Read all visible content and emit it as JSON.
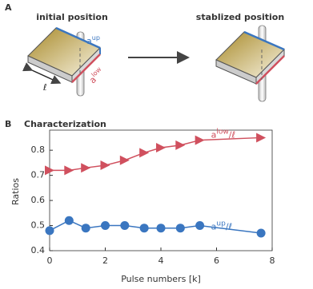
{
  "panel_a": {
    "letter": "A",
    "initial_title": "initial position",
    "stabilized_title": "stablized position",
    "labels": {
      "up": {
        "base": "a",
        "sup": "up"
      },
      "low": {
        "base": "a",
        "sup": "low"
      },
      "length": "ℓ"
    }
  },
  "chart_data": {
    "type": "line",
    "letter": "B",
    "title": "Characterization",
    "x_label": "Pulse numbers [k]",
    "y_label": "Ratios",
    "xlim": [
      0,
      8
    ],
    "xticks": [
      0,
      2,
      4,
      6,
      8
    ],
    "ylim": [
      0.4,
      0.88
    ],
    "yticks": [
      0.4,
      0.5,
      0.6,
      0.7,
      0.8
    ],
    "x": [
      0,
      0.7,
      1.3,
      2,
      2.7,
      3.4,
      4,
      4.7,
      5.4,
      7.6
    ],
    "series": [
      {
        "name": {
          "base": "a",
          "sup": "low",
          "rest": "/ℓ"
        },
        "color": "#d0505e",
        "marker": "triangle",
        "values": [
          0.72,
          0.72,
          0.73,
          0.74,
          0.76,
          0.79,
          0.81,
          0.82,
          0.84,
          0.85
        ]
      },
      {
        "name": {
          "base": "a",
          "sup": "up",
          "rest": "/ℓ"
        },
        "color": "#3a76c0",
        "marker": "circle",
        "values": [
          0.48,
          0.52,
          0.49,
          0.5,
          0.5,
          0.49,
          0.49,
          0.49,
          0.5,
          0.47
        ]
      }
    ]
  }
}
